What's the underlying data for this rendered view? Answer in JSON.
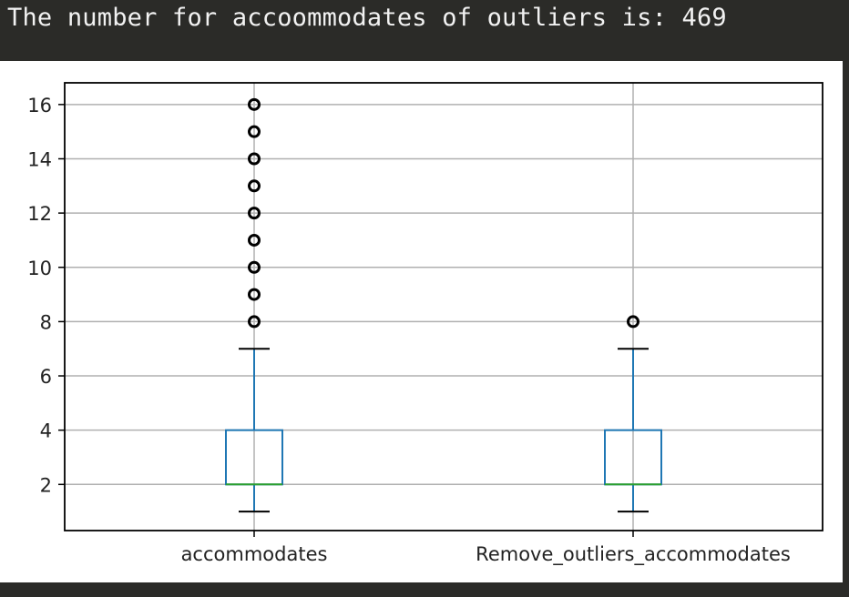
{
  "console": {
    "partial_line": "...",
    "output_line": "The number for accoommodates of outliers is: 469"
  },
  "colors": {
    "box": "#1f77b4",
    "median": "#2ca02c",
    "grid": "#b0b0b0",
    "axis": "#000000",
    "flier": "#000000"
  },
  "chart_data": {
    "type": "box",
    "categories": [
      "accommodates",
      "Remove_outliers_accommodates"
    ],
    "ylim": [
      0.3,
      16.8
    ],
    "yticks": [
      2,
      4,
      6,
      8,
      10,
      12,
      14,
      16
    ],
    "grid": true,
    "boxes": [
      {
        "whislo": 1,
        "q1": 2,
        "med": 2,
        "q3": 4,
        "whishi": 7,
        "fliers": [
          8,
          9,
          10,
          11,
          12,
          13,
          14,
          15,
          16
        ]
      },
      {
        "whislo": 1,
        "q1": 2,
        "med": 2,
        "q3": 4,
        "whishi": 7,
        "fliers": [
          8
        ]
      }
    ]
  }
}
